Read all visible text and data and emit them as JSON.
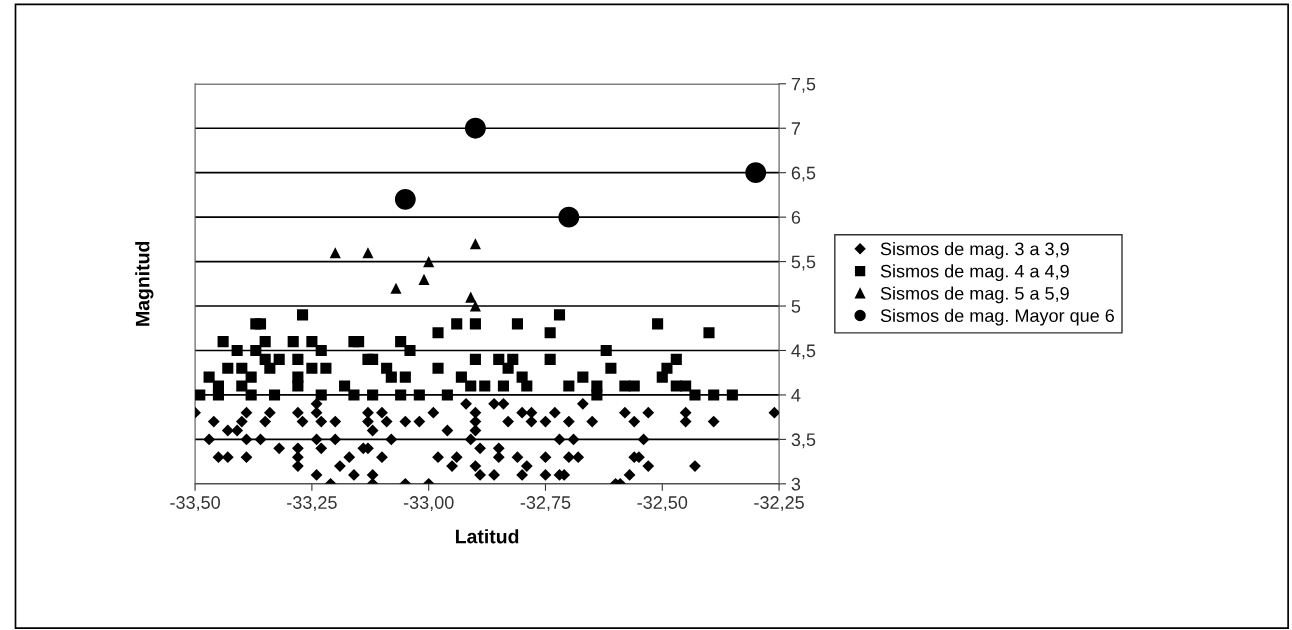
{
  "chart_data": {
    "type": "scatter",
    "xlabel": "Latitud",
    "ylabel": "Magnitud",
    "xlim": [
      -33.5,
      -32.25
    ],
    "ylim": [
      3,
      7.5
    ],
    "xticks": [
      {
        "value": -33.5,
        "label": "-33,50"
      },
      {
        "value": -33.25,
        "label": "-33,25"
      },
      {
        "value": -33.0,
        "label": "-33,00"
      },
      {
        "value": -32.75,
        "label": "-32,75"
      },
      {
        "value": -32.5,
        "label": "-32,50"
      },
      {
        "value": -32.25,
        "label": "-32,25"
      }
    ],
    "yticks": [
      3,
      {
        "value": 3.5,
        "label": "3,5"
      },
      4,
      {
        "value": 4.5,
        "label": "4,5"
      },
      5,
      {
        "value": 5.5,
        "label": "5,5"
      },
      6,
      {
        "value": 6.5,
        "label": "6,5"
      },
      7,
      {
        "value": 7.5,
        "label": "7,5"
      }
    ],
    "grid": "y",
    "legend": "right",
    "series": [
      {
        "name": "Sismos de mag. 3 a 3,9",
        "color": "#000000",
        "marker": "diamond",
        "x": [
          -33.5,
          -33.46,
          -33.43,
          -33.4,
          -33.39,
          -33.41,
          -33.47,
          -33.39,
          -33.36,
          -33.34,
          -33.35,
          -33.45,
          -33.43,
          -33.39,
          -33.32,
          -33.28,
          -33.27,
          -33.28,
          -33.28,
          -33.28,
          -33.24,
          -33.24,
          -33.23,
          -33.24,
          -33.23,
          -33.24,
          -33.21,
          -33.2,
          -33.2,
          -33.19,
          -33.17,
          -33.16,
          -33.13,
          -33.14,
          -33.13,
          -33.1,
          -33.09,
          -33.12,
          -33.08,
          -33.13,
          -33.1,
          -33.12,
          -33.12,
          -33.05,
          -33.0,
          -33.05,
          -33.02,
          -32.99,
          -32.96,
          -32.98,
          -32.94,
          -32.95,
          -32.92,
          -32.9,
          -32.9,
          -32.9,
          -32.91,
          -32.89,
          -32.9,
          -32.89,
          -32.86,
          -32.84,
          -32.83,
          -32.85,
          -32.85,
          -32.86,
          -32.8,
          -32.78,
          -32.78,
          -32.81,
          -32.79,
          -32.8,
          -32.73,
          -32.75,
          -32.72,
          -32.75,
          -32.75,
          -32.72,
          -32.67,
          -32.7,
          -32.65,
          -32.69,
          -32.7,
          -32.68,
          -32.71,
          -32.58,
          -32.56,
          -32.53,
          -32.54,
          -32.56,
          -32.55,
          -32.53,
          -32.57,
          -32.6,
          -32.59,
          -32.45,
          -32.45,
          -32.39,
          -32.43,
          -32.26
        ],
        "values": [
          3.8,
          3.7,
          3.6,
          3.7,
          3.8,
          3.6,
          3.5,
          3.5,
          3.5,
          3.8,
          3.7,
          3.3,
          3.3,
          3.3,
          3.4,
          3.8,
          3.7,
          3.4,
          3.3,
          3.2,
          3.9,
          3.8,
          3.7,
          3.5,
          3.4,
          3.1,
          3.0,
          3.7,
          3.5,
          3.2,
          3.3,
          3.1,
          3.7,
          3.4,
          3.8,
          3.8,
          3.7,
          3.6,
          3.5,
          3.4,
          3.3,
          3.1,
          3.0,
          3.0,
          3.0,
          3.7,
          3.7,
          3.8,
          3.6,
          3.3,
          3.3,
          3.2,
          3.9,
          3.8,
          3.7,
          3.6,
          3.5,
          3.4,
          3.2,
          3.1,
          3.9,
          3.9,
          3.7,
          3.4,
          3.3,
          3.1,
          3.8,
          3.8,
          3.7,
          3.3,
          3.2,
          3.1,
          3.8,
          3.7,
          3.5,
          3.3,
          3.1,
          3.1,
          3.9,
          3.7,
          3.7,
          3.5,
          3.3,
          3.3,
          3.1,
          3.8,
          3.7,
          3.8,
          3.5,
          3.3,
          3.3,
          3.2,
          3.1,
          3.0,
          3.0,
          3.8,
          3.7,
          3.7,
          3.2,
          3.8
        ]
      },
      {
        "name": "Sismos de mag. 4 a 4,9",
        "color": "#000000",
        "marker": "square",
        "x": [
          -33.27,
          -33.36,
          -33.37,
          -33.44,
          -33.41,
          -33.35,
          -33.37,
          -33.29,
          -33.25,
          -33.23,
          -33.32,
          -33.28,
          -33.35,
          -33.43,
          -33.4,
          -33.34,
          -33.25,
          -33.22,
          -33.47,
          -33.38,
          -33.28,
          -33.45,
          -33.4,
          -33.28,
          -33.18,
          -33.49,
          -33.45,
          -33.38,
          -33.33,
          -33.23,
          -33.16,
          -33.16,
          -32.72,
          -32.94,
          -32.9,
          -32.81,
          -32.98,
          -32.74,
          -33.06,
          -33.04,
          -33.12,
          -32.9,
          -32.85,
          -32.82,
          -32.98,
          -32.74,
          -33.09,
          -32.93,
          -32.83,
          -32.8,
          -33.08,
          -33.05,
          -32.88,
          -32.84,
          -32.79,
          -32.91,
          -33.12,
          -33.06,
          -33.02,
          -32.96,
          -32.7,
          -33.15,
          -33.13,
          -32.51,
          -32.4,
          -32.62,
          -32.61,
          -32.67,
          -32.64,
          -32.64,
          -32.58,
          -32.56,
          -32.47,
          -32.49,
          -32.5,
          -32.47,
          -32.45,
          -32.43,
          -32.39,
          -32.35
        ],
        "values": [
          4.9,
          4.8,
          4.8,
          4.6,
          4.5,
          4.6,
          4.5,
          4.6,
          4.6,
          4.5,
          4.4,
          4.4,
          4.4,
          4.3,
          4.3,
          4.3,
          4.3,
          4.3,
          4.2,
          4.2,
          4.2,
          4.1,
          4.1,
          4.1,
          4.1,
          4.0,
          4.0,
          4.0,
          4.0,
          4.0,
          4.0,
          4.6,
          4.9,
          4.8,
          4.8,
          4.8,
          4.7,
          4.7,
          4.6,
          4.5,
          4.4,
          4.4,
          4.4,
          4.4,
          4.3,
          4.4,
          4.3,
          4.2,
          4.3,
          4.2,
          4.2,
          4.2,
          4.1,
          4.1,
          4.1,
          4.1,
          4.0,
          4.0,
          4.0,
          4.0,
          4.1,
          4.6,
          4.4,
          4.8,
          4.7,
          4.5,
          4.3,
          4.2,
          4.1,
          4.0,
          4.1,
          4.1,
          4.4,
          4.3,
          4.2,
          4.1,
          4.1,
          4.0,
          4.0,
          4.0
        ]
      },
      {
        "name": "Sismos de mag. 5 a 5,9",
        "color": "#000000",
        "marker": "triangle",
        "x": [
          -33.2,
          -33.13,
          -33.07,
          -33.01,
          -33.0,
          -32.91,
          -32.9,
          -32.9
        ],
        "values": [
          5.6,
          5.6,
          5.2,
          5.3,
          5.5,
          5.1,
          5.7,
          5.0
        ]
      },
      {
        "name": "Sismos de mag. Mayor que 6",
        "color": "#000000",
        "marker": "circle",
        "x": [
          -32.9,
          -33.05,
          -32.7,
          -32.3
        ],
        "values": [
          7.0,
          6.2,
          6.0,
          6.5
        ]
      }
    ]
  }
}
